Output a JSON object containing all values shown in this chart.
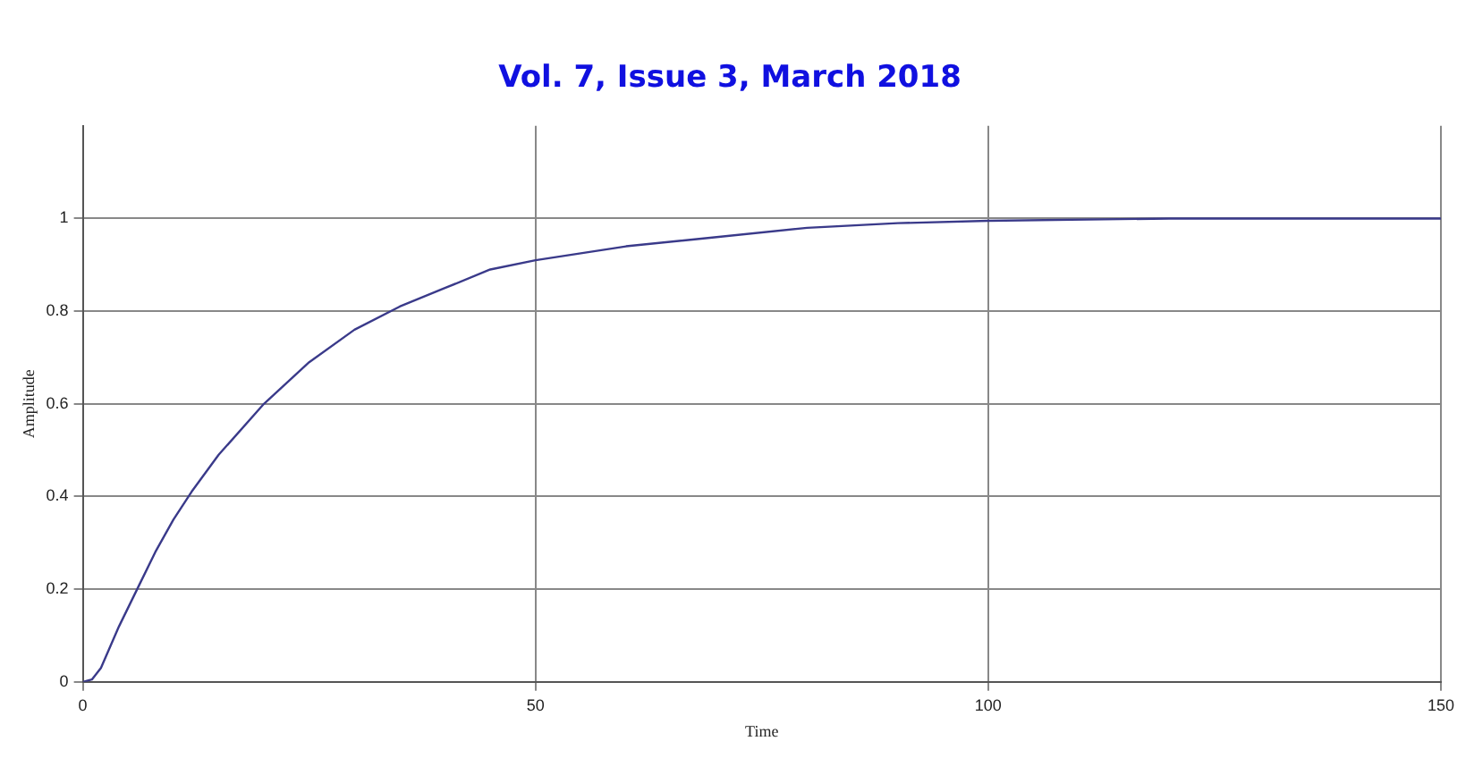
{
  "chart_data": {
    "type": "line",
    "title": "Vol. 7, Issue 3, March 2018",
    "xlabel": "Time",
    "ylabel": "Amplitude",
    "x": [
      0,
      1,
      2,
      4,
      6,
      8,
      10,
      12,
      15,
      20,
      25,
      30,
      35,
      40,
      45,
      50,
      60,
      70,
      80,
      90,
      100,
      120,
      150
    ],
    "series": [
      {
        "color": "#3a3a8a",
        "values": [
          0,
          0.005,
          0.03,
          0.12,
          0.2,
          0.28,
          0.35,
          0.41,
          0.49,
          0.6,
          0.69,
          0.76,
          0.81,
          0.85,
          0.89,
          0.91,
          0.94,
          0.96,
          0.98,
          0.99,
          0.995,
          1,
          1
        ]
      }
    ],
    "xlim": [
      0,
      150
    ],
    "ylim": [
      0,
      1.2
    ],
    "xticks": [
      0,
      50,
      100,
      150
    ],
    "yticks": [
      0,
      0.2,
      0.4,
      0.6,
      0.8,
      1
    ],
    "grid": true,
    "line_style": "solid",
    "marker": "none"
  }
}
